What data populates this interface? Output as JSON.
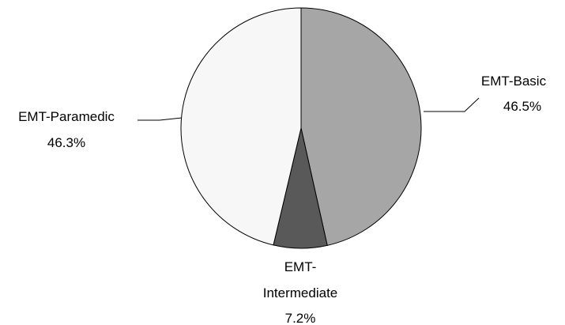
{
  "chart_data": {
    "type": "pie",
    "slices": [
      {
        "name": "EMT-Basic",
        "label_lines": [
          "EMT-Basic"
        ],
        "value": 46.5,
        "value_label": "46.5%",
        "color": "#a6a6a6"
      },
      {
        "name": "EMT-Intermediate",
        "label_lines": [
          "EMT-",
          "Intermediate"
        ],
        "value": 7.2,
        "value_label": "7.2%",
        "color": "#595959"
      },
      {
        "name": "EMT-Paramedic",
        "label_lines": [
          "EMT-Paramedic"
        ],
        "value": 46.3,
        "value_label": "46.3%",
        "color": "#f7f7f7"
      }
    ],
    "start_angle": "12 o'clock",
    "direction": "clockwise",
    "outline_color": "#000000"
  }
}
